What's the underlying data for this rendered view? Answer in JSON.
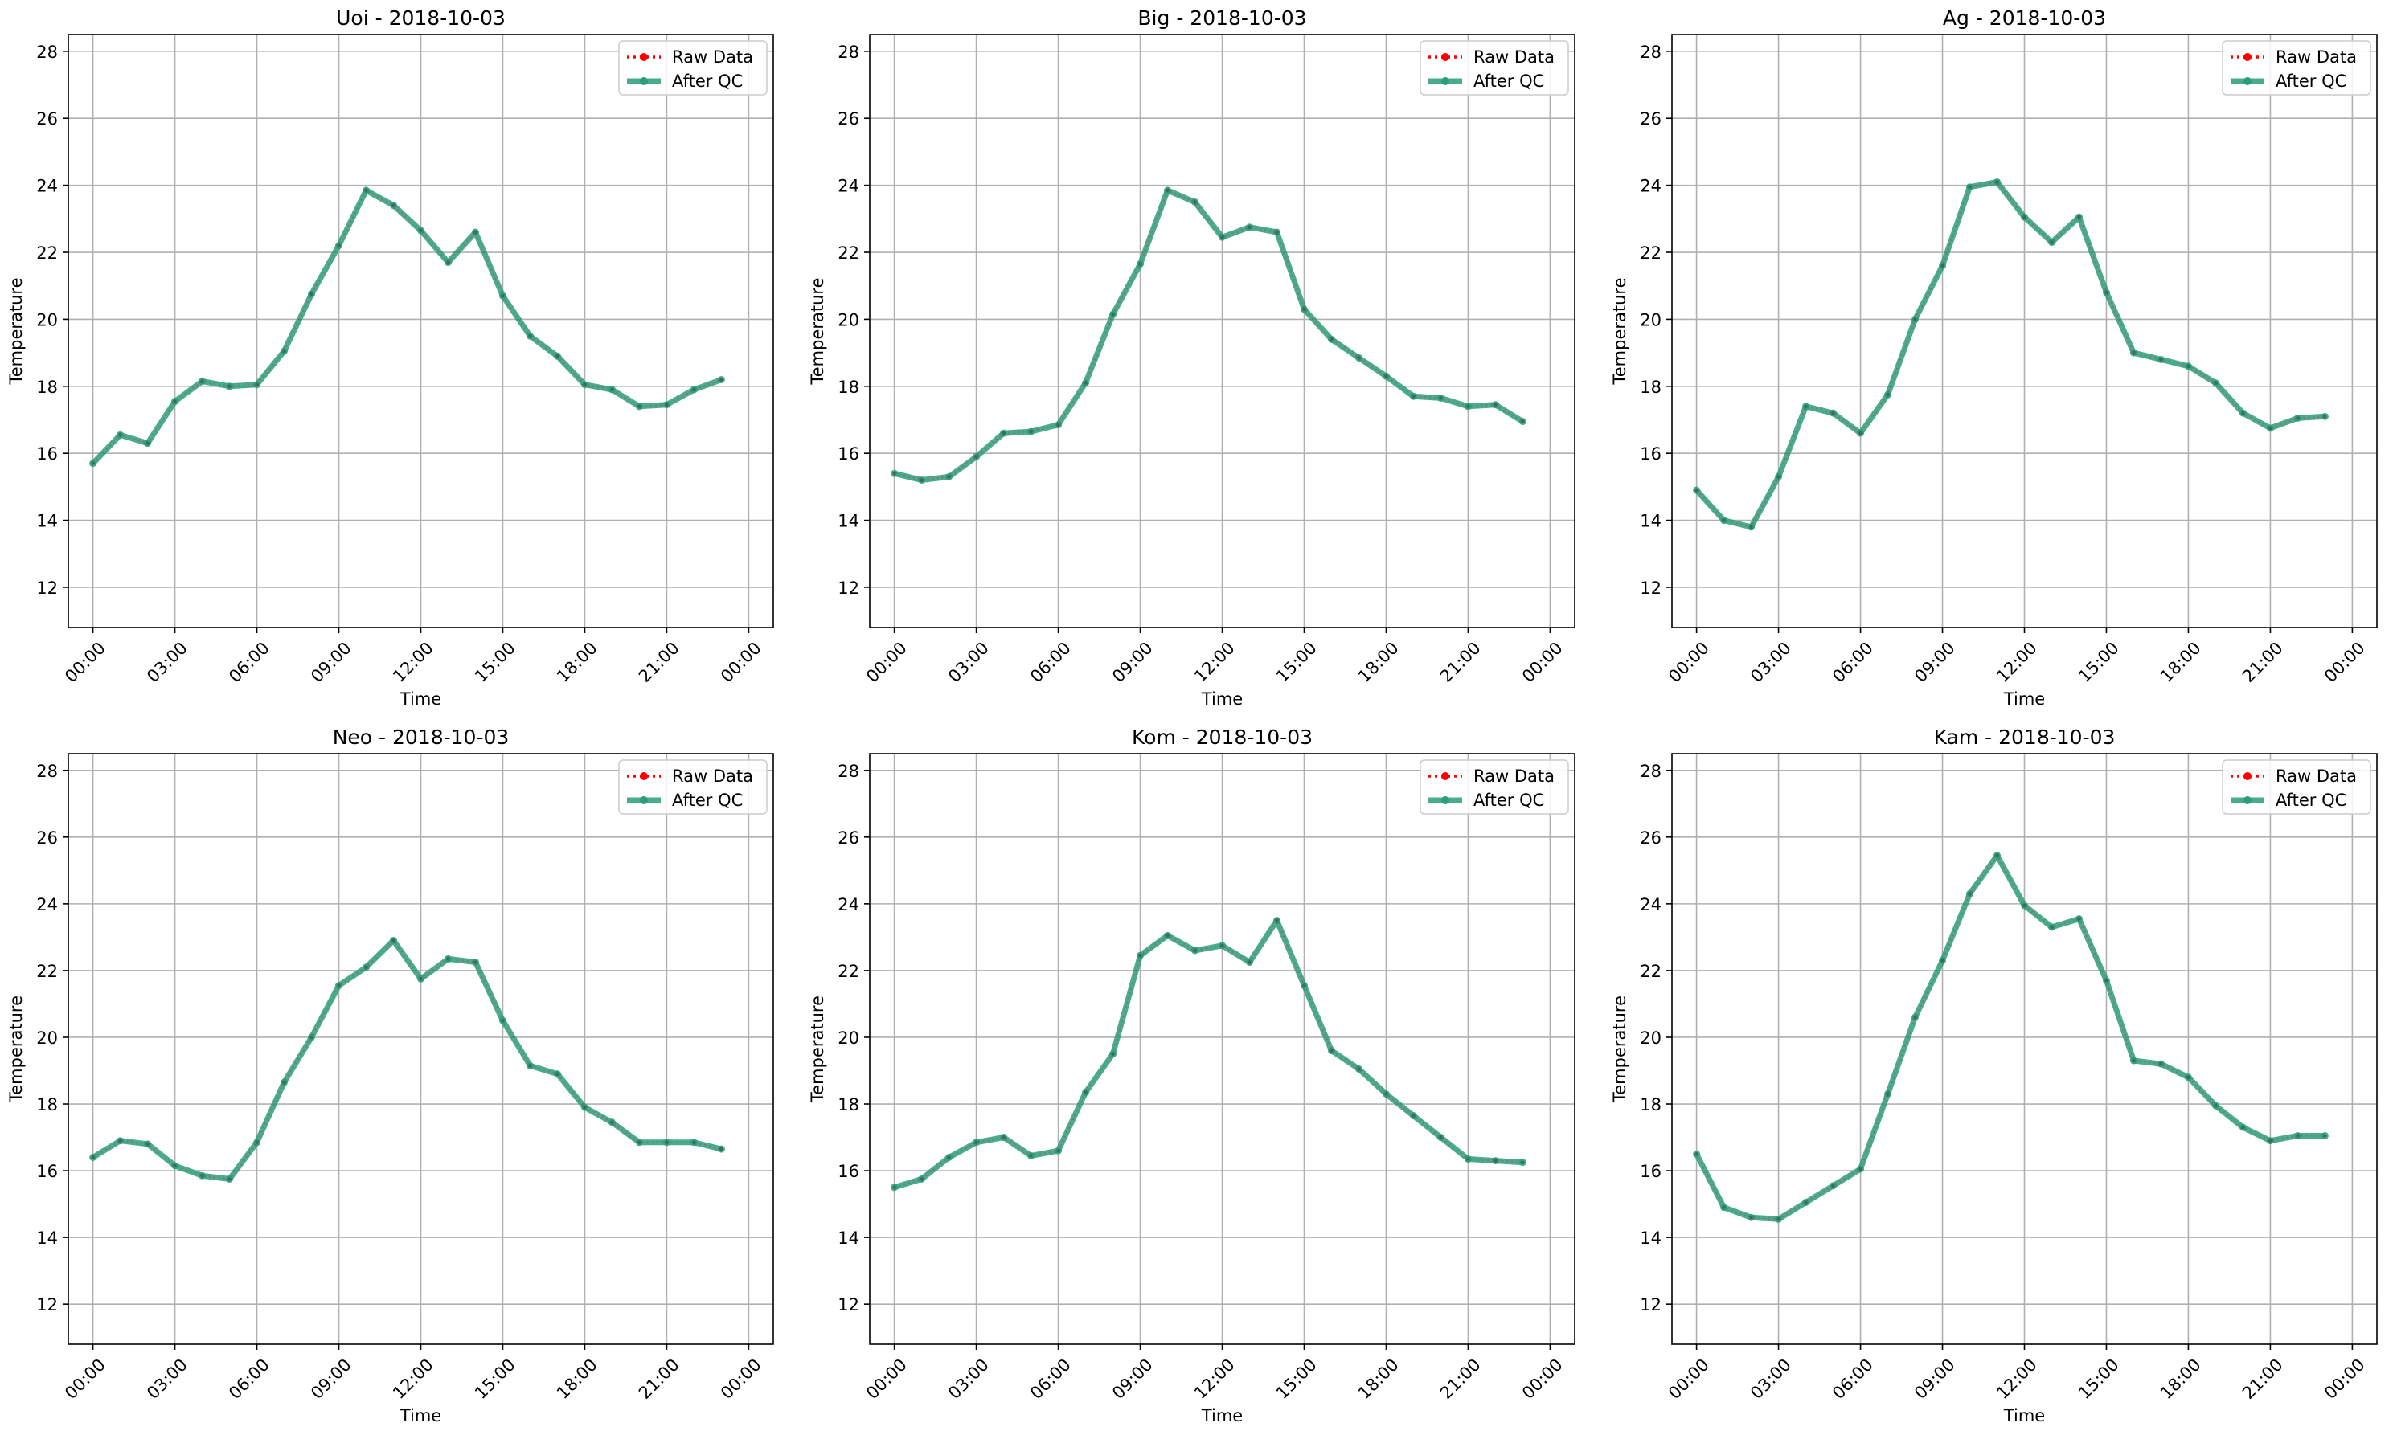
{
  "legend_labels": {
    "raw": "Raw Data",
    "qc": "After QC"
  },
  "colors": {
    "raw": "#ff0000",
    "qc": "#2a9d7a",
    "grid": "#b0b0b0",
    "axis": "#000000"
  },
  "chart_data": [
    {
      "type": "line",
      "title": "Uoi - 2018-10-03",
      "xlabel": "Time",
      "ylabel": "Temperature",
      "x": [
        "00:00",
        "01:00",
        "02:00",
        "03:00",
        "04:00",
        "05:00",
        "06:00",
        "07:00",
        "08:00",
        "09:00",
        "10:00",
        "11:00",
        "12:00",
        "13:00",
        "14:00",
        "15:00",
        "16:00",
        "17:00",
        "18:00",
        "19:00",
        "20:00",
        "21:00",
        "22:00",
        "23:00"
      ],
      "xticks": [
        "00:00",
        "03:00",
        "06:00",
        "09:00",
        "12:00",
        "15:00",
        "18:00",
        "21:00",
        "00:00"
      ],
      "yticks": [
        12,
        14,
        16,
        18,
        20,
        22,
        24,
        26,
        28
      ],
      "ylim": [
        10.8,
        28.5
      ],
      "grid": true,
      "legend_position": "top-right",
      "series": [
        {
          "name": "Raw Data",
          "values": [
            15.7,
            16.55,
            16.3,
            17.55,
            18.15,
            18.0,
            18.05,
            19.05,
            20.75,
            22.2,
            23.85,
            23.4,
            22.65,
            21.7,
            22.6,
            20.7,
            19.5,
            18.9,
            18.05,
            17.9,
            17.4,
            17.45,
            17.9,
            18.2
          ]
        },
        {
          "name": "After QC",
          "values": [
            15.7,
            16.55,
            16.3,
            17.55,
            18.15,
            18.0,
            18.05,
            19.05,
            20.75,
            22.2,
            23.85,
            23.4,
            22.65,
            21.7,
            22.6,
            20.7,
            19.5,
            18.9,
            18.05,
            17.9,
            17.4,
            17.45,
            17.9,
            18.2
          ]
        }
      ]
    },
    {
      "type": "line",
      "title": "Big - 2018-10-03",
      "xlabel": "Time",
      "ylabel": "Temperature",
      "x": [
        "00:00",
        "01:00",
        "02:00",
        "03:00",
        "04:00",
        "05:00",
        "06:00",
        "07:00",
        "08:00",
        "09:00",
        "10:00",
        "11:00",
        "12:00",
        "13:00",
        "14:00",
        "15:00",
        "16:00",
        "17:00",
        "18:00",
        "19:00",
        "20:00",
        "21:00",
        "22:00",
        "23:00"
      ],
      "xticks": [
        "00:00",
        "03:00",
        "06:00",
        "09:00",
        "12:00",
        "15:00",
        "18:00",
        "21:00",
        "00:00"
      ],
      "yticks": [
        12,
        14,
        16,
        18,
        20,
        22,
        24,
        26,
        28
      ],
      "ylim": [
        10.8,
        28.5
      ],
      "grid": true,
      "legend_position": "top-right",
      "series": [
        {
          "name": "Raw Data",
          "values": [
            15.4,
            15.2,
            15.3,
            15.9,
            16.6,
            16.65,
            16.85,
            18.1,
            20.15,
            21.65,
            23.85,
            23.5,
            22.45,
            22.75,
            22.6,
            20.3,
            19.4,
            18.85,
            18.3,
            17.7,
            17.65,
            17.4,
            17.45,
            16.95
          ]
        },
        {
          "name": "After QC",
          "values": [
            15.4,
            15.2,
            15.3,
            15.9,
            16.6,
            16.65,
            16.85,
            18.1,
            20.15,
            21.65,
            23.85,
            23.5,
            22.45,
            22.75,
            22.6,
            20.3,
            19.4,
            18.85,
            18.3,
            17.7,
            17.65,
            17.4,
            17.45,
            16.95
          ]
        }
      ]
    },
    {
      "type": "line",
      "title": "Ag - 2018-10-03",
      "xlabel": "Time",
      "ylabel": "Temperature",
      "x": [
        "00:00",
        "01:00",
        "02:00",
        "03:00",
        "04:00",
        "05:00",
        "06:00",
        "07:00",
        "08:00",
        "09:00",
        "10:00",
        "11:00",
        "12:00",
        "13:00",
        "14:00",
        "15:00",
        "16:00",
        "17:00",
        "18:00",
        "19:00",
        "20:00",
        "21:00",
        "22:00",
        "23:00"
      ],
      "xticks": [
        "00:00",
        "03:00",
        "06:00",
        "09:00",
        "12:00",
        "15:00",
        "18:00",
        "21:00",
        "00:00"
      ],
      "yticks": [
        12,
        14,
        16,
        18,
        20,
        22,
        24,
        26,
        28
      ],
      "ylim": [
        10.8,
        28.5
      ],
      "grid": true,
      "legend_position": "top-right",
      "series": [
        {
          "name": "Raw Data",
          "values": [
            14.9,
            14.0,
            13.8,
            15.3,
            17.4,
            17.2,
            16.6,
            17.75,
            20.0,
            21.6,
            23.95,
            24.1,
            23.05,
            22.3,
            23.05,
            20.8,
            19.0,
            18.8,
            18.6,
            18.1,
            17.2,
            16.75,
            17.05,
            17.1
          ]
        },
        {
          "name": "After QC",
          "values": [
            14.9,
            14.0,
            13.8,
            15.3,
            17.4,
            17.2,
            16.6,
            17.75,
            20.0,
            21.6,
            23.95,
            24.1,
            23.05,
            22.3,
            23.05,
            20.8,
            19.0,
            18.8,
            18.6,
            18.1,
            17.2,
            16.75,
            17.05,
            17.1
          ]
        }
      ]
    },
    {
      "type": "line",
      "title": "Neo - 2018-10-03",
      "xlabel": "Time",
      "ylabel": "Temperature",
      "x": [
        "00:00",
        "01:00",
        "02:00",
        "03:00",
        "04:00",
        "05:00",
        "06:00",
        "07:00",
        "08:00",
        "09:00",
        "10:00",
        "11:00",
        "12:00",
        "13:00",
        "14:00",
        "15:00",
        "16:00",
        "17:00",
        "18:00",
        "19:00",
        "20:00",
        "21:00",
        "22:00",
        "23:00"
      ],
      "xticks": [
        "00:00",
        "03:00",
        "06:00",
        "09:00",
        "12:00",
        "15:00",
        "18:00",
        "21:00",
        "00:00"
      ],
      "yticks": [
        12,
        14,
        16,
        18,
        20,
        22,
        24,
        26,
        28
      ],
      "ylim": [
        10.8,
        28.5
      ],
      "grid": true,
      "legend_position": "top-right",
      "series": [
        {
          "name": "Raw Data",
          "values": [
            16.4,
            16.9,
            16.8,
            16.15,
            15.85,
            15.75,
            16.85,
            18.65,
            20.0,
            21.55,
            22.1,
            22.9,
            21.75,
            22.35,
            22.25,
            20.5,
            19.15,
            18.9,
            17.9,
            17.45,
            16.85,
            16.85,
            16.85,
            16.65
          ]
        },
        {
          "name": "After QC",
          "values": [
            16.4,
            16.9,
            16.8,
            16.15,
            15.85,
            15.75,
            16.85,
            18.65,
            20.0,
            21.55,
            22.1,
            22.9,
            21.75,
            22.35,
            22.25,
            20.5,
            19.15,
            18.9,
            17.9,
            17.45,
            16.85,
            16.85,
            16.85,
            16.65
          ]
        }
      ]
    },
    {
      "type": "line",
      "title": "Kom - 2018-10-03",
      "xlabel": "Time",
      "ylabel": "Temperature",
      "x": [
        "00:00",
        "01:00",
        "02:00",
        "03:00",
        "04:00",
        "05:00",
        "06:00",
        "07:00",
        "08:00",
        "09:00",
        "10:00",
        "11:00",
        "12:00",
        "13:00",
        "14:00",
        "15:00",
        "16:00",
        "17:00",
        "18:00",
        "19:00",
        "20:00",
        "21:00",
        "22:00",
        "23:00"
      ],
      "xticks": [
        "00:00",
        "03:00",
        "06:00",
        "09:00",
        "12:00",
        "15:00",
        "18:00",
        "21:00",
        "00:00"
      ],
      "yticks": [
        12,
        14,
        16,
        18,
        20,
        22,
        24,
        26,
        28
      ],
      "ylim": [
        10.8,
        28.5
      ],
      "grid": true,
      "legend_position": "top-right",
      "series": [
        {
          "name": "Raw Data",
          "values": [
            15.5,
            15.75,
            16.4,
            16.85,
            17.0,
            16.45,
            16.6,
            18.35,
            19.5,
            22.45,
            23.05,
            22.6,
            22.75,
            22.25,
            23.5,
            21.55,
            19.6,
            19.05,
            18.3,
            17.65,
            17.0,
            16.35,
            16.3,
            16.25
          ]
        },
        {
          "name": "After QC",
          "values": [
            15.5,
            15.75,
            16.4,
            16.85,
            17.0,
            16.45,
            16.6,
            18.35,
            19.5,
            22.45,
            23.05,
            22.6,
            22.75,
            22.25,
            23.5,
            21.55,
            19.6,
            19.05,
            18.3,
            17.65,
            17.0,
            16.35,
            16.3,
            16.25
          ]
        }
      ]
    },
    {
      "type": "line",
      "title": "Kam - 2018-10-03",
      "xlabel": "Time",
      "ylabel": "Temperature",
      "x": [
        "00:00",
        "01:00",
        "02:00",
        "03:00",
        "04:00",
        "05:00",
        "06:00",
        "07:00",
        "08:00",
        "09:00",
        "10:00",
        "11:00",
        "12:00",
        "13:00",
        "14:00",
        "15:00",
        "16:00",
        "17:00",
        "18:00",
        "19:00",
        "20:00",
        "21:00",
        "22:00",
        "23:00"
      ],
      "xticks": [
        "00:00",
        "03:00",
        "06:00",
        "09:00",
        "12:00",
        "15:00",
        "18:00",
        "21:00",
        "00:00"
      ],
      "yticks": [
        12,
        14,
        16,
        18,
        20,
        22,
        24,
        26,
        28
      ],
      "ylim": [
        10.8,
        28.5
      ],
      "grid": true,
      "legend_position": "top-right",
      "series": [
        {
          "name": "Raw Data",
          "values": [
            16.5,
            14.9,
            14.6,
            14.55,
            15.05,
            15.55,
            16.05,
            18.3,
            20.6,
            22.3,
            24.3,
            25.45,
            23.95,
            23.3,
            23.55,
            21.7,
            19.3,
            19.2,
            18.8,
            17.95,
            17.3,
            16.9,
            17.05,
            17.05
          ]
        },
        {
          "name": "After QC",
          "values": [
            16.5,
            14.9,
            14.6,
            14.55,
            15.05,
            15.55,
            16.05,
            18.3,
            20.6,
            22.3,
            24.3,
            25.45,
            23.95,
            23.3,
            23.55,
            21.7,
            19.3,
            19.2,
            18.8,
            17.95,
            17.3,
            16.9,
            17.05,
            17.05
          ]
        }
      ]
    }
  ]
}
